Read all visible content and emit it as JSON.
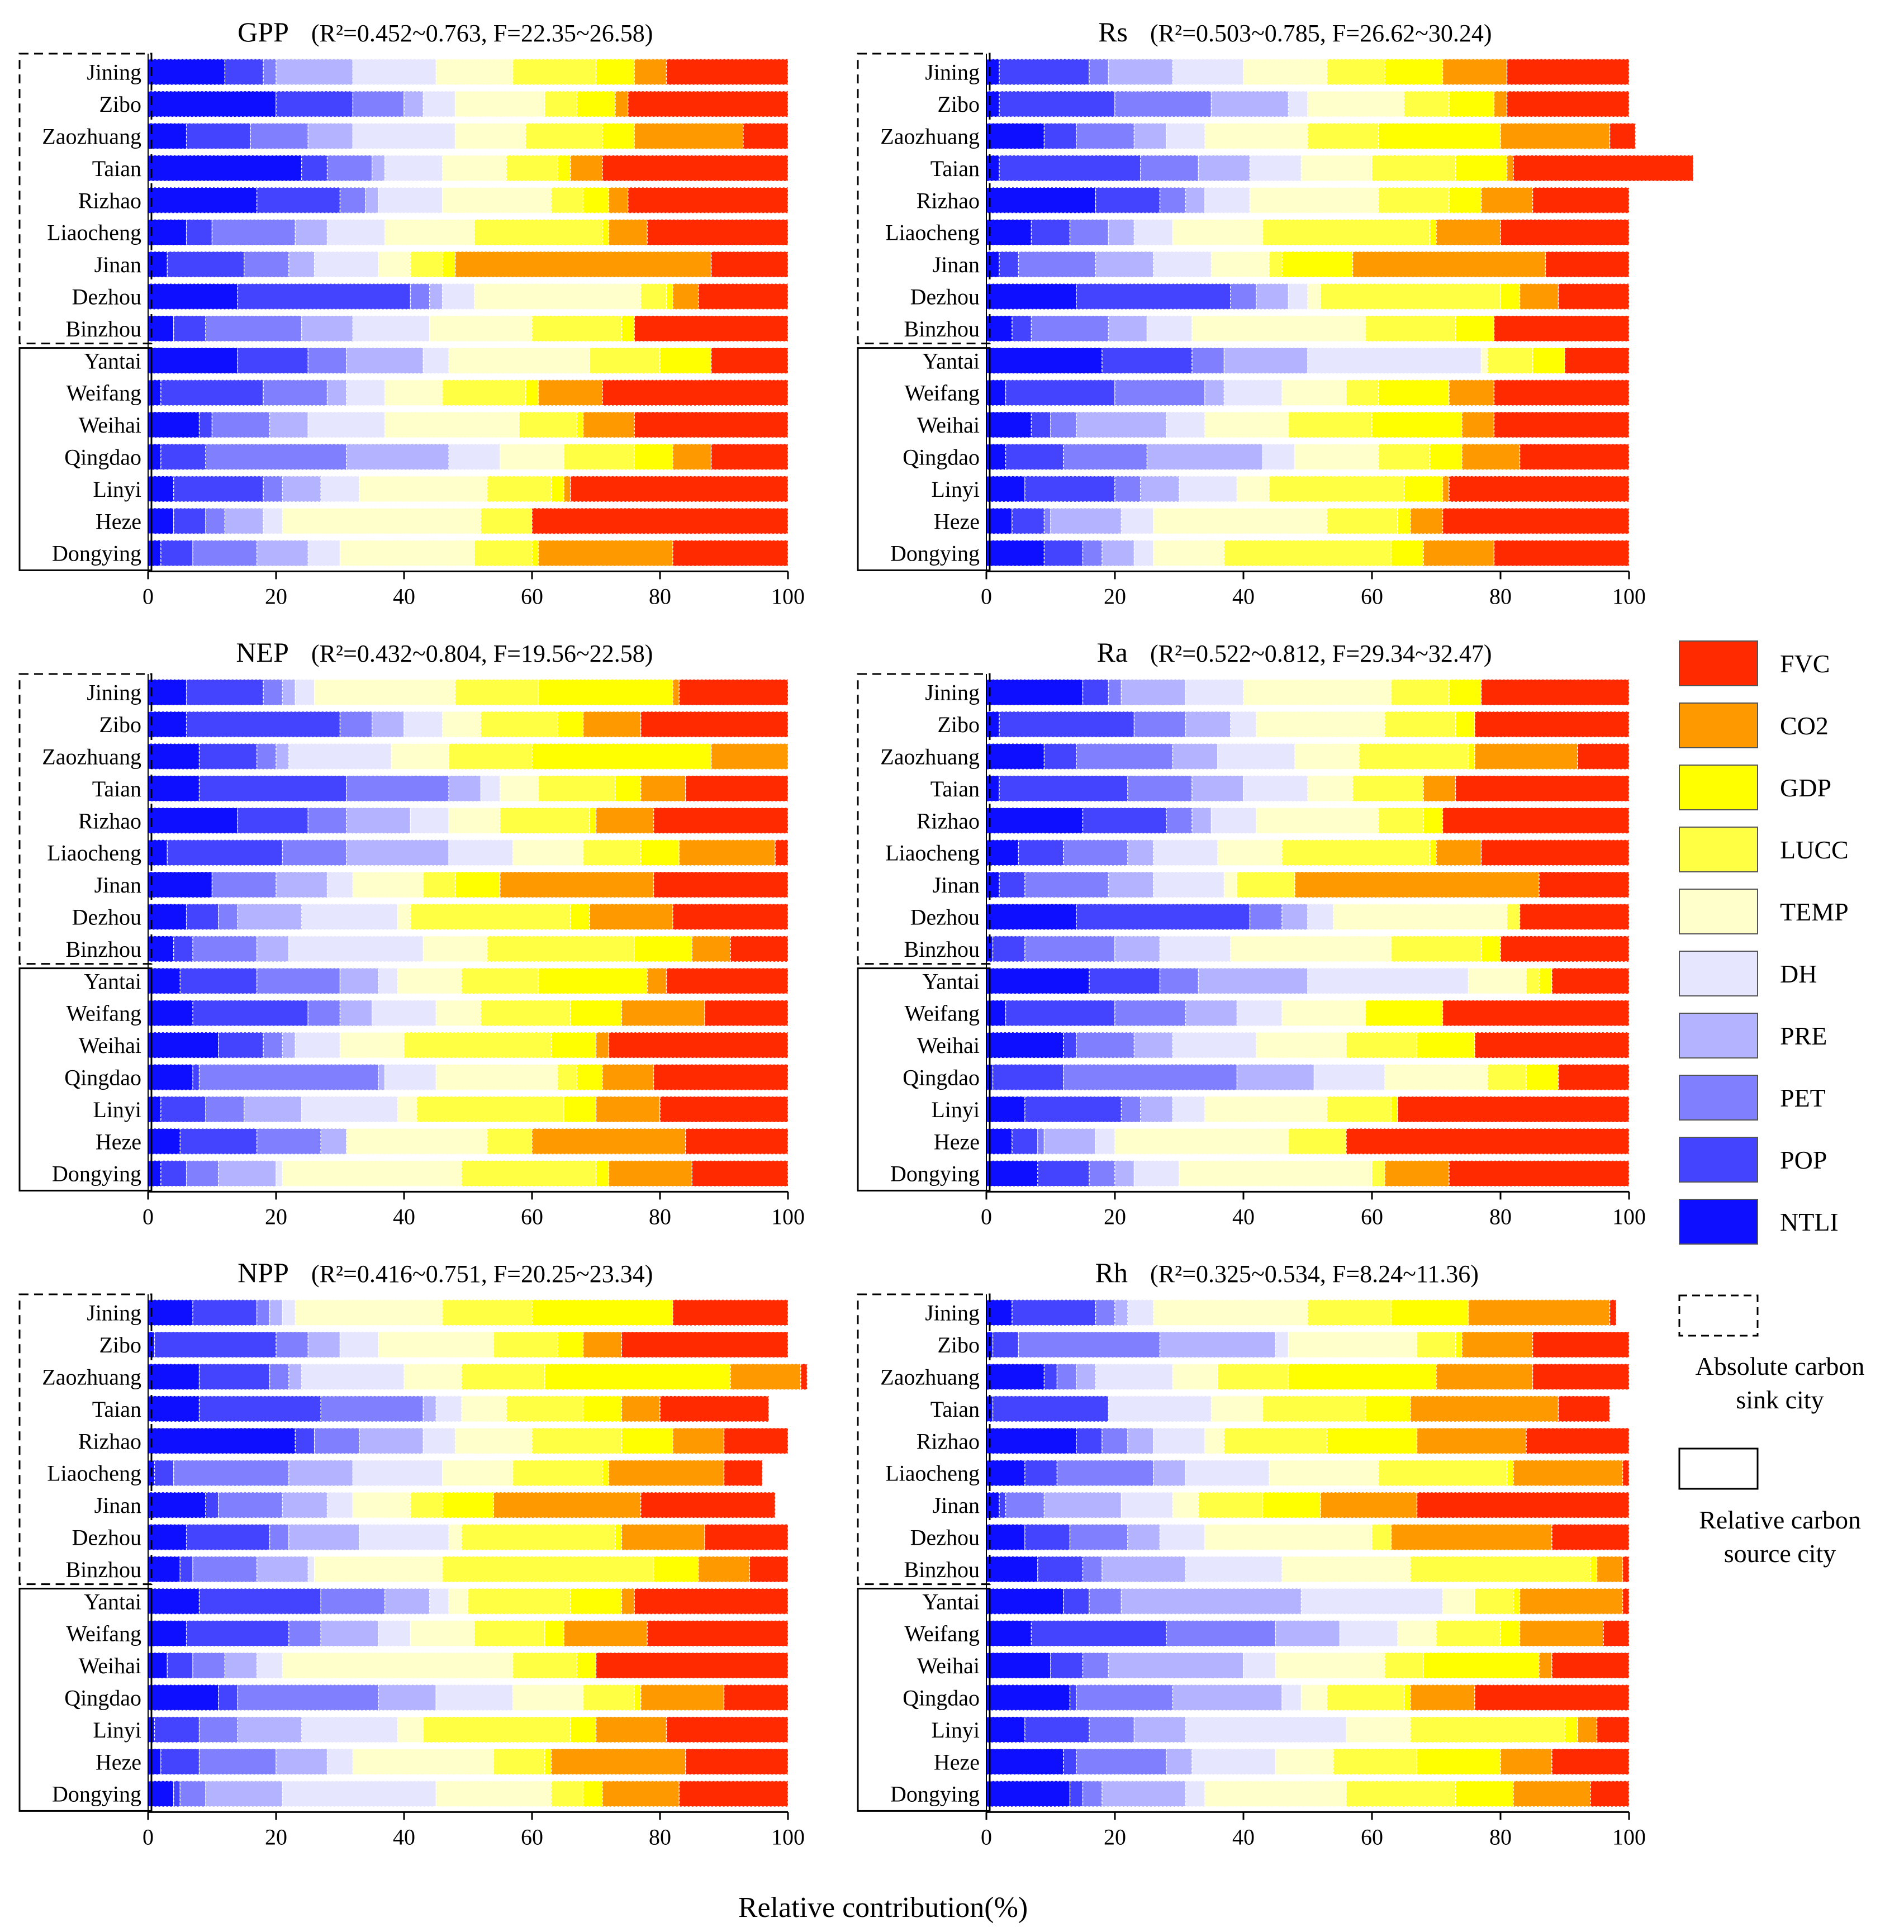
{
  "colors": {
    "FVC": "#ff2a00",
    "CO2": "#ff9900",
    "GDP": "#ffff00",
    "LUCC": "#ffff44",
    "TEMP": "#ffffcc",
    "DH": "#e6e6ff",
    "PRE": "#b3b3ff",
    "PET": "#8080ff",
    "POP": "#4444ff",
    "NTLI": "#0f0fff"
  },
  "xlabel": "Relative contribution(%)",
  "legend": {
    "items": [
      "FVC",
      "CO2",
      "GDP",
      "LUCC",
      "TEMP",
      "DH",
      "PRE",
      "PET",
      "POP",
      "NTLI"
    ],
    "absolute_label": "Absolute carbon sink city",
    "relative_label": "Relative carbon source city"
  },
  "cities": [
    "Jining",
    "Zibo",
    "Zaozhuang",
    "Taian",
    "Rizhao",
    "Liaocheng",
    "Jinan",
    "Dezhou",
    "Binzhou",
    "Yantai",
    "Weifang",
    "Weihai",
    "Qingdao",
    "Linyi",
    "Heze",
    "Dongying"
  ],
  "factors": [
    "NTLI",
    "POP",
    "PET",
    "PRE",
    "DH",
    "TEMP",
    "LUCC",
    "GDP",
    "CO2",
    "FVC"
  ],
  "groups": {
    "absolute_count": 9,
    "relative_count": 7
  },
  "chart_data": [
    {
      "type": "bar",
      "title": "GPP",
      "subtitle": "(R²=0.452~0.763, F=22.35~26.58)",
      "xlim": [
        0,
        100
      ],
      "xticks": [
        0,
        20,
        40,
        60,
        80,
        100
      ],
      "rows": [
        [
          12,
          6,
          2,
          12,
          13,
          12,
          13,
          6,
          5,
          19
        ],
        [
          20,
          12,
          8,
          3,
          5,
          14,
          5,
          6,
          2,
          25
        ],
        [
          6,
          10,
          9,
          7,
          16,
          11,
          12,
          5,
          17,
          7
        ],
        [
          24,
          4,
          7,
          2,
          9,
          10,
          8,
          2,
          5,
          29
        ],
        [
          17,
          13,
          4,
          2,
          10,
          17,
          5,
          4,
          3,
          25
        ],
        [
          6,
          4,
          13,
          5,
          9,
          14,
          20,
          1,
          6,
          22
        ],
        [
          3,
          12,
          7,
          4,
          10,
          5,
          5,
          2,
          40,
          12
        ],
        [
          14,
          27,
          3,
          2,
          5,
          26,
          4,
          1,
          4,
          14
        ],
        [
          4,
          5,
          15,
          8,
          12,
          16,
          14,
          2,
          0,
          24
        ],
        [
          14,
          11,
          6,
          12,
          4,
          22,
          11,
          8,
          0,
          12
        ],
        [
          2,
          16,
          10,
          3,
          6,
          9,
          13,
          2,
          10,
          29
        ],
        [
          8,
          2,
          9,
          6,
          12,
          21,
          9,
          1,
          8,
          24
        ],
        [
          2,
          7,
          22,
          16,
          8,
          10,
          11,
          6,
          6,
          12
        ],
        [
          4,
          14,
          3,
          6,
          6,
          20,
          10,
          2,
          1,
          34
        ],
        [
          4,
          5,
          3,
          6,
          3,
          31,
          8,
          0,
          0,
          40
        ],
        [
          2,
          5,
          10,
          8,
          5,
          21,
          9,
          1,
          21,
          18
        ]
      ]
    },
    {
      "type": "bar",
      "title": "Rs",
      "subtitle": "(R²=0.503~0.785, F=26.62~30.24)",
      "xlim": [
        0,
        100
      ],
      "xticks": [
        0,
        20,
        40,
        60,
        80,
        100
      ],
      "rows": [
        [
          2,
          14,
          3,
          10,
          11,
          13,
          9,
          9,
          10,
          19
        ],
        [
          2,
          18,
          15,
          12,
          3,
          15,
          7,
          7,
          2,
          19
        ],
        [
          9,
          5,
          9,
          5,
          6,
          16,
          11,
          19,
          17,
          4
        ],
        [
          2,
          22,
          9,
          8,
          8,
          11,
          13,
          8,
          1,
          28
        ],
        [
          17,
          10,
          4,
          3,
          7,
          20,
          11,
          5,
          8,
          15
        ],
        [
          7,
          6,
          6,
          4,
          6,
          14,
          26,
          1,
          10,
          20
        ],
        [
          2,
          3,
          12,
          9,
          9,
          9,
          2,
          11,
          30,
          13
        ],
        [
          14,
          24,
          4,
          5,
          3,
          2,
          28,
          3,
          6,
          11
        ],
        [
          4,
          3,
          12,
          6,
          7,
          27,
          14,
          6,
          0,
          21
        ],
        [
          18,
          14,
          5,
          13,
          27,
          1,
          7,
          5,
          0,
          10
        ],
        [
          3,
          17,
          14,
          3,
          9,
          10,
          5,
          11,
          7,
          21
        ],
        [
          7,
          3,
          4,
          14,
          6,
          13,
          13,
          14,
          5,
          21
        ],
        [
          3,
          9,
          13,
          18,
          5,
          13,
          8,
          5,
          9,
          17
        ],
        [
          6,
          14,
          4,
          6,
          9,
          5,
          21,
          6,
          1,
          28
        ],
        [
          4,
          5,
          1,
          11,
          5,
          27,
          11,
          2,
          5,
          29
        ],
        [
          9,
          6,
          3,
          5,
          3,
          11,
          26,
          5,
          11,
          21
        ]
      ]
    },
    {
      "type": "bar",
      "title": "NEP",
      "subtitle": "(R²=0.432~0.804, F=19.56~22.58)",
      "xlim": [
        0,
        100
      ],
      "xticks": [
        0,
        20,
        40,
        60,
        80,
        100
      ],
      "rows": [
        [
          6,
          12,
          3,
          2,
          3,
          22,
          13,
          21,
          1,
          17
        ],
        [
          6,
          24,
          5,
          5,
          6,
          6,
          12,
          4,
          9,
          23
        ],
        [
          8,
          9,
          3,
          2,
          16,
          9,
          13,
          28,
          12,
          0
        ],
        [
          8,
          23,
          16,
          5,
          3,
          6,
          12,
          4,
          7,
          16
        ],
        [
          14,
          11,
          6,
          10,
          6,
          8,
          14,
          1,
          9,
          21
        ],
        [
          3,
          18,
          10,
          16,
          10,
          11,
          9,
          6,
          15,
          2
        ],
        [
          10,
          0,
          10,
          8,
          4,
          11,
          5,
          7,
          24,
          21
        ],
        [
          6,
          5,
          3,
          10,
          15,
          2,
          25,
          3,
          13,
          18
        ],
        [
          4,
          3,
          10,
          5,
          21,
          10,
          23,
          9,
          6,
          9
        ],
        [
          5,
          12,
          13,
          6,
          3,
          10,
          12,
          17,
          3,
          19
        ],
        [
          7,
          18,
          5,
          5,
          10,
          7,
          14,
          8,
          13,
          13
        ],
        [
          11,
          7,
          3,
          2,
          7,
          10,
          23,
          7,
          2,
          28
        ],
        [
          7,
          1,
          28,
          1,
          8,
          19,
          3,
          4,
          8,
          21
        ],
        [
          2,
          7,
          6,
          9,
          15,
          3,
          23,
          5,
          10,
          20
        ],
        [
          5,
          12,
          10,
          4,
          0,
          22,
          7,
          0,
          24,
          16
        ],
        [
          2,
          4,
          5,
          9,
          1,
          28,
          21,
          2,
          13,
          15
        ]
      ]
    },
    {
      "type": "bar",
      "title": "Ra",
      "subtitle": "(R²=0.522~0.812, F=29.34~32.47)",
      "xlim": [
        0,
        100
      ],
      "xticks": [
        0,
        20,
        40,
        60,
        80,
        100
      ],
      "rows": [
        [
          15,
          4,
          2,
          10,
          9,
          23,
          9,
          5,
          0,
          23
        ],
        [
          2,
          21,
          8,
          7,
          4,
          20,
          11,
          3,
          0,
          24
        ],
        [
          9,
          5,
          15,
          7,
          12,
          10,
          17,
          1,
          16,
          8
        ],
        [
          2,
          20,
          10,
          8,
          10,
          7,
          11,
          0,
          5,
          27
        ],
        [
          15,
          13,
          4,
          3,
          7,
          19,
          7,
          3,
          0,
          29
        ],
        [
          5,
          7,
          10,
          4,
          10,
          10,
          23,
          1,
          7,
          23
        ],
        [
          2,
          4,
          13,
          7,
          11,
          2,
          9,
          0,
          38,
          14
        ],
        [
          14,
          27,
          5,
          4,
          4,
          27,
          2,
          0,
          0,
          17
        ],
        [
          1,
          5,
          14,
          7,
          11,
          25,
          14,
          3,
          0,
          20
        ],
        [
          16,
          11,
          6,
          17,
          25,
          9,
          2,
          2,
          0,
          12
        ],
        [
          3,
          17,
          11,
          8,
          7,
          13,
          0,
          12,
          0,
          29
        ],
        [
          12,
          2,
          9,
          6,
          13,
          14,
          11,
          9,
          0,
          24
        ],
        [
          1,
          11,
          27,
          12,
          11,
          16,
          6,
          5,
          0,
          11
        ],
        [
          6,
          15,
          3,
          5,
          5,
          19,
          10,
          1,
          0,
          36
        ],
        [
          4,
          4,
          1,
          8,
          3,
          27,
          9,
          0,
          0,
          44
        ],
        [
          8,
          8,
          4,
          3,
          7,
          30,
          2,
          0,
          10,
          28
        ]
      ]
    },
    {
      "type": "bar",
      "title": "NPP",
      "subtitle": "(R²=0.416~0.751, F=20.25~23.34)",
      "xlim": [
        0,
        100
      ],
      "xticks": [
        0,
        20,
        40,
        60,
        80,
        100
      ],
      "rows": [
        [
          7,
          10,
          2,
          2,
          2,
          23,
          14,
          22,
          0,
          18
        ],
        [
          1,
          19,
          5,
          5,
          6,
          18,
          10,
          4,
          6,
          26
        ],
        [
          8,
          11,
          3,
          2,
          16,
          9,
          13,
          29,
          11,
          1
        ],
        [
          8,
          19,
          16,
          2,
          4,
          7,
          12,
          6,
          6,
          17
        ],
        [
          23,
          3,
          7,
          10,
          5,
          12,
          14,
          8,
          8,
          10
        ],
        [
          1,
          3,
          18,
          10,
          14,
          11,
          14,
          1,
          18,
          6
        ],
        [
          9,
          2,
          10,
          7,
          4,
          9,
          5,
          8,
          23,
          21
        ],
        [
          6,
          13,
          3,
          11,
          14,
          2,
          24,
          1,
          13,
          13
        ],
        [
          5,
          2,
          10,
          8,
          1,
          20,
          33,
          7,
          8,
          6
        ],
        [
          8,
          19,
          10,
          7,
          3,
          3,
          16,
          8,
          2,
          24
        ],
        [
          6,
          16,
          5,
          9,
          5,
          10,
          11,
          3,
          13,
          22
        ],
        [
          3,
          4,
          5,
          5,
          4,
          36,
          10,
          3,
          0,
          30
        ],
        [
          11,
          3,
          22,
          9,
          12,
          11,
          8,
          1,
          13,
          10
        ],
        [
          1,
          7,
          6,
          10,
          15,
          4,
          23,
          4,
          11,
          19
        ],
        [
          2,
          6,
          12,
          8,
          4,
          22,
          8,
          1,
          21,
          16
        ],
        [
          4,
          1,
          4,
          12,
          24,
          18,
          5,
          3,
          12,
          17
        ]
      ]
    },
    {
      "type": "bar",
      "title": "Rh",
      "subtitle": "(R²=0.325~0.534, F=8.24~11.36)",
      "xlim": [
        0,
        100
      ],
      "xticks": [
        0,
        20,
        40,
        60,
        80,
        100
      ],
      "rows": [
        [
          4,
          13,
          3,
          2,
          4,
          24,
          13,
          12,
          22,
          1
        ],
        [
          1,
          4,
          22,
          18,
          2,
          20,
          6,
          1,
          11,
          15
        ],
        [
          9,
          2,
          3,
          3,
          12,
          7,
          11,
          23,
          15,
          15
        ],
        [
          1,
          18,
          0,
          0,
          16,
          8,
          16,
          7,
          23,
          8
        ],
        [
          14,
          4,
          4,
          4,
          8,
          3,
          16,
          14,
          17,
          16
        ],
        [
          6,
          5,
          15,
          5,
          13,
          17,
          20,
          1,
          17,
          1
        ],
        [
          2,
          1,
          6,
          12,
          8,
          4,
          10,
          9,
          15,
          33
        ],
        [
          6,
          7,
          9,
          5,
          7,
          26,
          3,
          0,
          25,
          12
        ],
        [
          8,
          7,
          3,
          13,
          15,
          20,
          28,
          1,
          4,
          1
        ],
        [
          12,
          4,
          5,
          28,
          22,
          5,
          6,
          1,
          16,
          1
        ],
        [
          7,
          21,
          17,
          10,
          9,
          6,
          10,
          3,
          13,
          4
        ],
        [
          10,
          5,
          4,
          21,
          5,
          17,
          6,
          18,
          2,
          12
        ],
        [
          13,
          1,
          15,
          17,
          3,
          4,
          12,
          1,
          10,
          24
        ],
        [
          6,
          10,
          7,
          8,
          25,
          10,
          24,
          2,
          3,
          5
        ],
        [
          12,
          2,
          14,
          4,
          13,
          9,
          13,
          13,
          8,
          12
        ],
        [
          13,
          2,
          3,
          13,
          3,
          22,
          17,
          9,
          12,
          6
        ]
      ]
    }
  ]
}
